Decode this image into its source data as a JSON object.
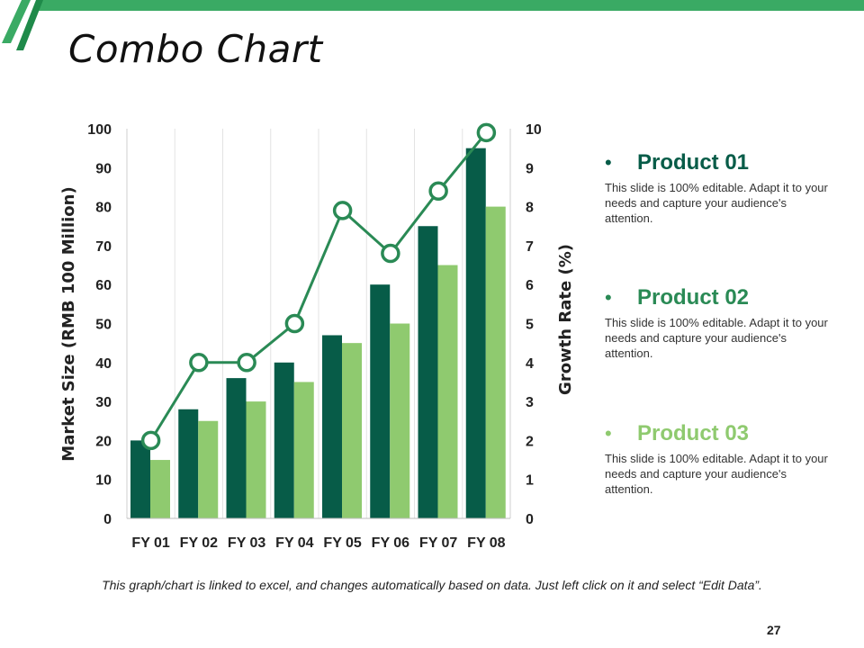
{
  "slide": {
    "title": "Combo Chart",
    "footnote": "This graph/chart is linked to excel, and changes automatically based on data. Just left click on it and select “Edit Data”.",
    "page_number": "27",
    "accent_color": "#3aaa64"
  },
  "legend": [
    {
      "bullet": "•",
      "name": "Product 01",
      "desc": "This slide is 100% editable. Adapt it to your needs and capture your audience's attention.",
      "color": "#075c48"
    },
    {
      "bullet": "•",
      "name": "Product 02",
      "desc": "This slide is 100% editable. Adapt it to your needs and capture your audience's attention.",
      "color": "#2a8a55"
    },
    {
      "bullet": "•",
      "name": "Product 03",
      "desc": "This slide is 100% editable. Adapt it to your needs and capture your audience's attention.",
      "color": "#8fca6f"
    }
  ],
  "chart_data": {
    "type": "bar",
    "title": "Combo Chart",
    "categories": [
      "FY 01",
      "FY 02",
      "FY 03",
      "FY 04",
      "FY 05",
      "FY 06",
      "FY 07",
      "FY 08"
    ],
    "series": [
      {
        "name": "Product 01",
        "kind": "bar",
        "axis": "left",
        "color": "#075c48",
        "values": [
          20,
          28,
          36,
          40,
          47,
          60,
          75,
          95
        ]
      },
      {
        "name": "Product 03",
        "kind": "bar",
        "axis": "left",
        "color": "#8fca6f",
        "values": [
          15,
          25,
          30,
          35,
          45,
          50,
          65,
          80
        ]
      },
      {
        "name": "Product 02",
        "kind": "line",
        "axis": "right",
        "color": "#2a8a55",
        "values": [
          2,
          4,
          4,
          5,
          7.9,
          6.8,
          8.4,
          9.9
        ]
      }
    ],
    "ylabel": "Market Size (RMB 100 Million)",
    "ylim": [
      0,
      100
    ],
    "yticks": [
      "0",
      "10",
      "20",
      "30",
      "40",
      "50",
      "60",
      "70",
      "80",
      "90",
      "100"
    ],
    "y2label": "Growth Rate (%)",
    "y2lim": [
      0,
      10
    ],
    "y2ticks": [
      "0",
      "1",
      "2",
      "3",
      "4",
      "5",
      "6",
      "7",
      "8",
      "9",
      "10"
    ],
    "grid": true
  }
}
